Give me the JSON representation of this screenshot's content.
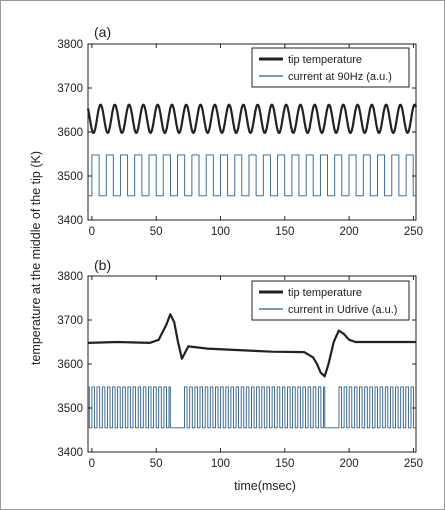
{
  "figure": {
    "ylabel": "temperature at the middle of the tip (K)",
    "xlabel": "time(msec)"
  },
  "chart_data": [
    {
      "panel": "(a)",
      "type": "line",
      "xlim": [
        -3,
        252
      ],
      "ylim": [
        3400,
        3800
      ],
      "xticks": [
        0,
        50,
        100,
        150,
        200,
        250
      ],
      "yticks": [
        3400,
        3500,
        3600,
        3700,
        3800
      ],
      "grid": false,
      "legend": "top-right",
      "series": [
        {
          "name": "tip temperature",
          "color": "#222222",
          "kind": "sine",
          "mean": 3630,
          "amplitude": 32,
          "period_ms": 11.1,
          "phase_ms": 4
        },
        {
          "name": "current at 90Hz (a.u.)",
          "color": "#2a5d8f",
          "kind": "square",
          "low": 3455,
          "high": 3548,
          "period_ms": 11.1,
          "phase_ms": 0
        }
      ]
    },
    {
      "panel": "(b)",
      "type": "line",
      "xlim": [
        -3,
        252
      ],
      "ylim": [
        3400,
        3800
      ],
      "xticks": [
        0,
        50,
        100,
        150,
        200,
        250
      ],
      "yticks": [
        3400,
        3500,
        3600,
        3700,
        3800
      ],
      "grid": false,
      "legend": "top-right",
      "series": [
        {
          "name": "tip temperature",
          "color": "#222222",
          "kind": "points",
          "x": [
            -3,
            20,
            45,
            52,
            58,
            61,
            64,
            67,
            70,
            75,
            90,
            110,
            140,
            165,
            172,
            175,
            178,
            181,
            184,
            188,
            192,
            196,
            200,
            205,
            215,
            235,
            252
          ],
          "y": [
            3648,
            3650,
            3648,
            3655,
            3690,
            3713,
            3695,
            3650,
            3612,
            3640,
            3635,
            3632,
            3628,
            3627,
            3615,
            3600,
            3580,
            3572,
            3600,
            3650,
            3676,
            3668,
            3655,
            3650,
            3650,
            3650,
            3650
          ]
        },
        {
          "name": "current in Udrive (a.u.)",
          "color": "#2a5d8f",
          "kind": "square",
          "low": 3455,
          "high": 3548,
          "period_ms": 4.0,
          "phase_ms": 0,
          "holds": [
            {
              "from": 61,
              "to": 71,
              "level": "low"
            },
            {
              "from": 181,
              "to": 191,
              "level": "low"
            }
          ]
        }
      ]
    }
  ]
}
